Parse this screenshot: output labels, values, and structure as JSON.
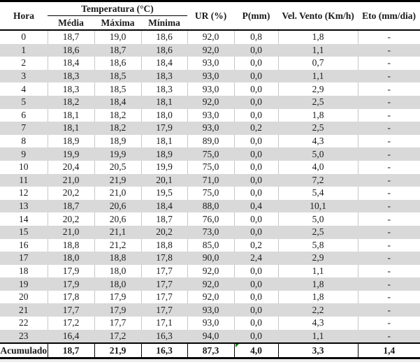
{
  "colors": {
    "stripe_gray": "#d9d9d9",
    "grid_line_gray": "#c6c6c6",
    "table_border_black": "#000000",
    "text": "#1a1a1a",
    "error_indicator_green": "#008000"
  },
  "table": {
    "header": {
      "hora": "Hora",
      "temperatura_group": "Temperatura (°C)",
      "media": "Média",
      "maxima": "Máxima",
      "minima": "Mínima",
      "ur": "UR (%)",
      "p": "P(mm)",
      "vento": "Vel. Vento (Km/h)",
      "eto": "Eto (mm/dia)"
    },
    "rows": [
      [
        "0",
        "18,7",
        "19,0",
        "18,6",
        "92,0",
        "0,8",
        "1,8",
        "-"
      ],
      [
        "1",
        "18,6",
        "18,7",
        "18,6",
        "92,0",
        "0,0",
        "1,1",
        "-"
      ],
      [
        "2",
        "18,4",
        "18,6",
        "18,4",
        "93,0",
        "0,0",
        "0,7",
        "-"
      ],
      [
        "3",
        "18,3",
        "18,5",
        "18,3",
        "93,0",
        "0,0",
        "1,1",
        "-"
      ],
      [
        "4",
        "18,3",
        "18,5",
        "18,3",
        "93,0",
        "0,0",
        "2,9",
        "-"
      ],
      [
        "5",
        "18,2",
        "18,4",
        "18,1",
        "92,0",
        "0,0",
        "2,5",
        "-"
      ],
      [
        "6",
        "18,1",
        "18,2",
        "18,0",
        "93,0",
        "0,0",
        "1,8",
        "-"
      ],
      [
        "7",
        "18,1",
        "18,2",
        "17,9",
        "93,0",
        "0,2",
        "2,5",
        "-"
      ],
      [
        "8",
        "18,9",
        "18,9",
        "18,1",
        "89,0",
        "0,0",
        "4,3",
        "-"
      ],
      [
        "9",
        "19,9",
        "19,9",
        "18,9",
        "75,0",
        "0,0",
        "5,0",
        "-"
      ],
      [
        "10",
        "20,4",
        "20,5",
        "19,9",
        "75,0",
        "0,0",
        "4,0",
        "-"
      ],
      [
        "11",
        "21,0",
        "21,9",
        "20,1",
        "71,0",
        "0,0",
        "7,2",
        "-"
      ],
      [
        "12",
        "20,2",
        "21,0",
        "19,5",
        "75,0",
        "0,0",
        "5,4",
        "-"
      ],
      [
        "13",
        "18,7",
        "20,6",
        "18,4",
        "88,0",
        "0,4",
        "10,1",
        "-"
      ],
      [
        "14",
        "20,2",
        "20,6",
        "18,7",
        "76,0",
        "0,0",
        "5,0",
        "-"
      ],
      [
        "15",
        "21,0",
        "21,1",
        "20,2",
        "73,0",
        "0,0",
        "2,5",
        "-"
      ],
      [
        "16",
        "18,8",
        "21,2",
        "18,8",
        "85,0",
        "0,2",
        "5,8",
        "-"
      ],
      [
        "17",
        "18,0",
        "18,8",
        "17,8",
        "90,0",
        "2,4",
        "2,9",
        "-"
      ],
      [
        "18",
        "17,9",
        "18,0",
        "17,7",
        "92,0",
        "0,0",
        "1,1",
        "-"
      ],
      [
        "19",
        "17,9",
        "18,0",
        "17,7",
        "92,0",
        "0,0",
        "1,8",
        "-"
      ],
      [
        "20",
        "17,8",
        "17,9",
        "17,7",
        "92,0",
        "0,0",
        "1,8",
        "-"
      ],
      [
        "21",
        "17,7",
        "17,9",
        "17,7",
        "93,0",
        "0,0",
        "2,2",
        "-"
      ],
      [
        "22",
        "17,2",
        "17,7",
        "17,1",
        "93,0",
        "0,0",
        "4,3",
        "-"
      ],
      [
        "23",
        "16,4",
        "17,2",
        "16,3",
        "94,0",
        "0,0",
        "1,1",
        "-"
      ]
    ],
    "footer": {
      "label": "Acumulado",
      "values": [
        "18,7",
        "21,9",
        "16,3",
        "87,3",
        "4,0",
        "3,3",
        "1,4"
      ],
      "error_indicator_on_column": "P(mm)"
    }
  }
}
